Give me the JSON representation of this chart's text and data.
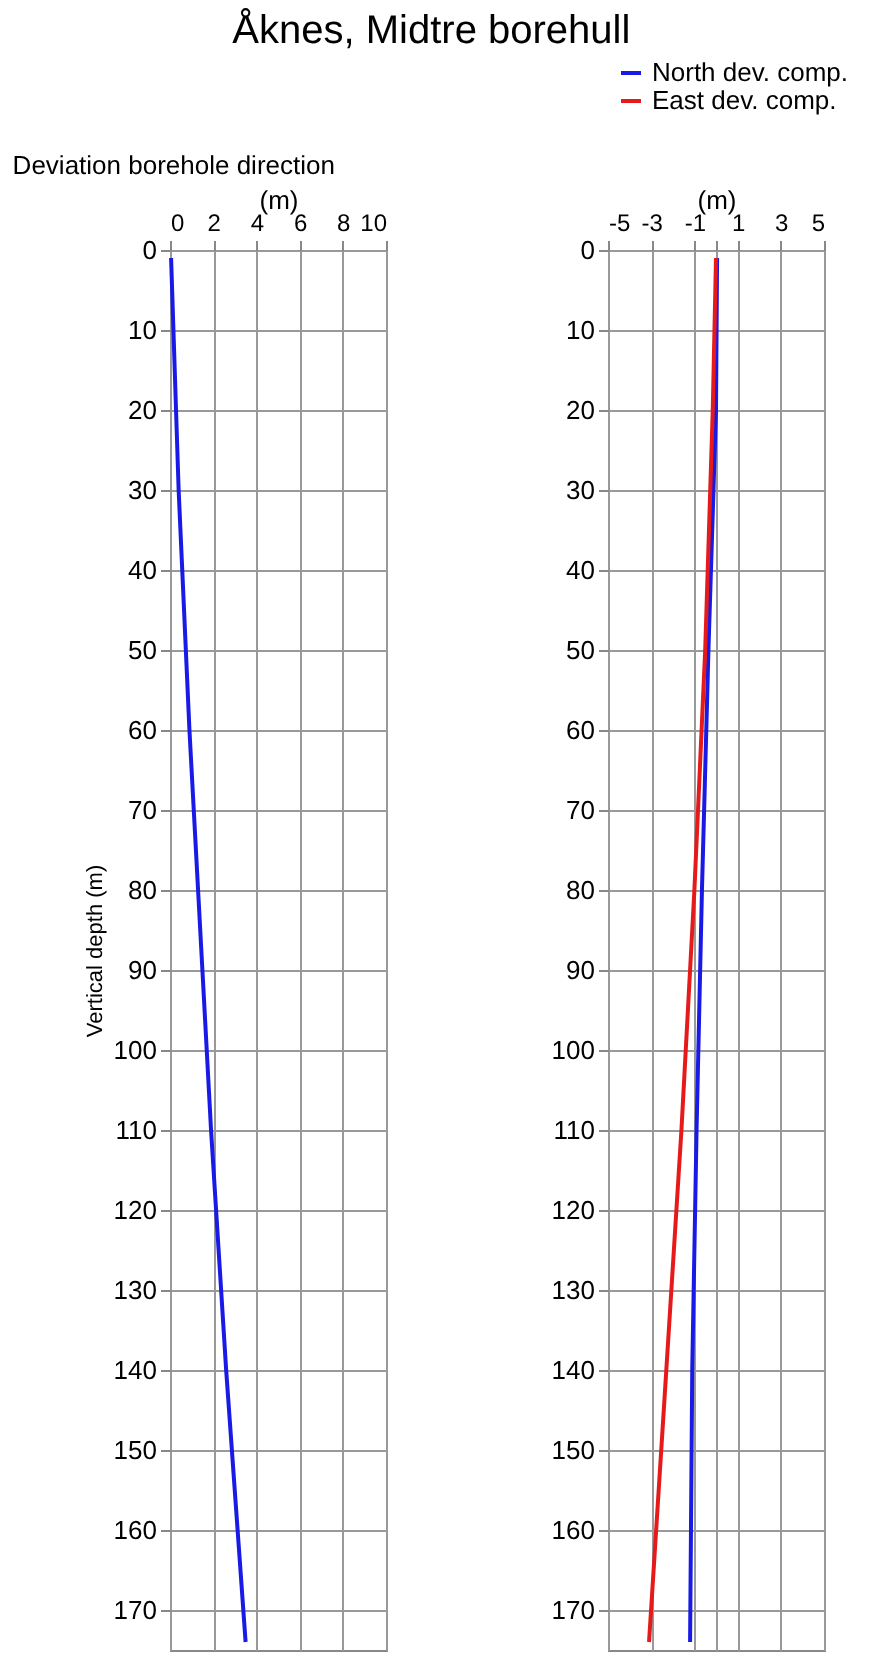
{
  "chart_data": [
    {
      "type": "line",
      "title": "Åknes,  Midtre borehull",
      "subtitle": "Deviation borehole direction",
      "xlabel": "(m)",
      "ylabel": "Vertical depth  (m)",
      "xlim": [
        0,
        10
      ],
      "xticks": [
        0,
        2,
        4,
        6,
        8,
        10
      ],
      "ylim": [
        175,
        0
      ],
      "yticks": [
        0,
        10,
        20,
        30,
        40,
        50,
        60,
        70,
        80,
        90,
        100,
        110,
        120,
        130,
        140,
        150,
        160,
        170
      ],
      "grid": true,
      "series": [
        {
          "color": "#1a1ae6",
          "x": [
            0.05,
            0.4,
            0.9,
            1.5,
            1.9,
            2.6,
            3.5
          ],
          "values": [
            1,
            30,
            60,
            90,
            110,
            140,
            174
          ]
        }
      ]
    },
    {
      "type": "line",
      "xlabel": "(m)",
      "xlim": [
        -5,
        5
      ],
      "xticks": [
        -5,
        -3,
        -1,
        {
          "value": 0,
          "label": null
        },
        1,
        3,
        5
      ],
      "ylim": [
        175,
        0
      ],
      "yticks": [
        0,
        10,
        20,
        30,
        40,
        50,
        60,
        70,
        80,
        90,
        100,
        110,
        120,
        130,
        140,
        150,
        160,
        170
      ],
      "grid": true,
      "legend": "top right",
      "series": [
        {
          "name": "North dev. comp.",
          "color": "#1a1ae6",
          "x": [
            0.05,
            0.0,
            -0.35,
            -0.65,
            -0.9,
            -1.1,
            -1.2
          ],
          "values": [
            1,
            20,
            50,
            80,
            110,
            140,
            174
          ]
        },
        {
          "name": "East  dev. comp.",
          "color": "#e61a1a",
          "x": [
            0.0,
            -0.15,
            -0.5,
            -1.0,
            -1.6,
            -2.3,
            -3.1
          ],
          "values": [
            1,
            20,
            50,
            80,
            110,
            140,
            174
          ]
        }
      ]
    }
  ]
}
